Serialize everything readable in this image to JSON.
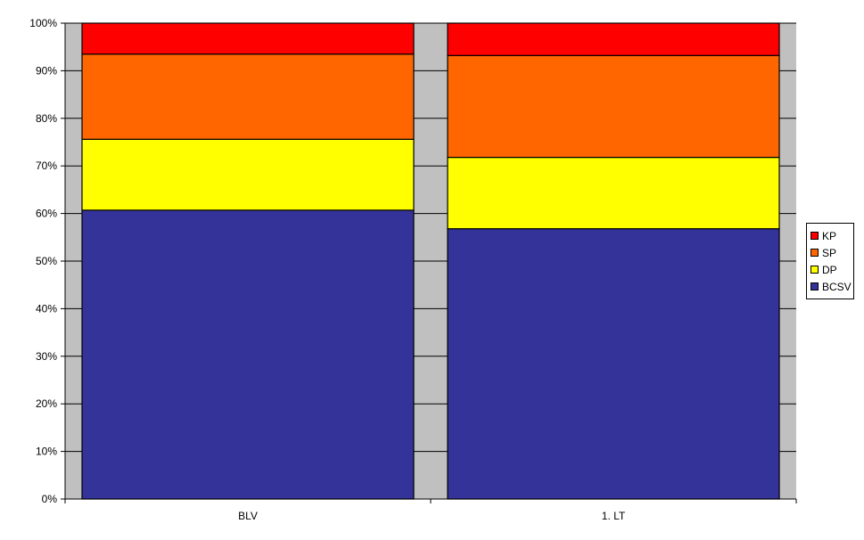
{
  "chart_data": {
    "type": "bar",
    "stacked": true,
    "percent_stacked": true,
    "categories": [
      "BLV",
      "1. LT"
    ],
    "series": [
      {
        "name": "BCSV",
        "color": "#333399",
        "values": [
          60.7,
          56.8
        ]
      },
      {
        "name": "DP",
        "color": "#FFFF00",
        "values": [
          14.9,
          15.0
        ]
      },
      {
        "name": "SP",
        "color": "#FF6600",
        "values": [
          17.9,
          21.4
        ]
      },
      {
        "name": "KP",
        "color": "#FF0000",
        "values": [
          6.5,
          6.8
        ]
      }
    ],
    "y_ticks": [
      "0%",
      "10%",
      "20%",
      "30%",
      "40%",
      "50%",
      "60%",
      "70%",
      "80%",
      "90%",
      "100%"
    ],
    "ylim": [
      0,
      100
    ],
    "grid": true,
    "plot_background": "#C0C0C0",
    "legend_position": "right",
    "title": "",
    "xlabel": "",
    "ylabel": ""
  },
  "legend": {
    "items": [
      {
        "label": "KP",
        "color": "#FF0000"
      },
      {
        "label": "SP",
        "color": "#FF6600"
      },
      {
        "label": "DP",
        "color": "#FFFF00"
      },
      {
        "label": "BCSV",
        "color": "#333399"
      }
    ]
  }
}
